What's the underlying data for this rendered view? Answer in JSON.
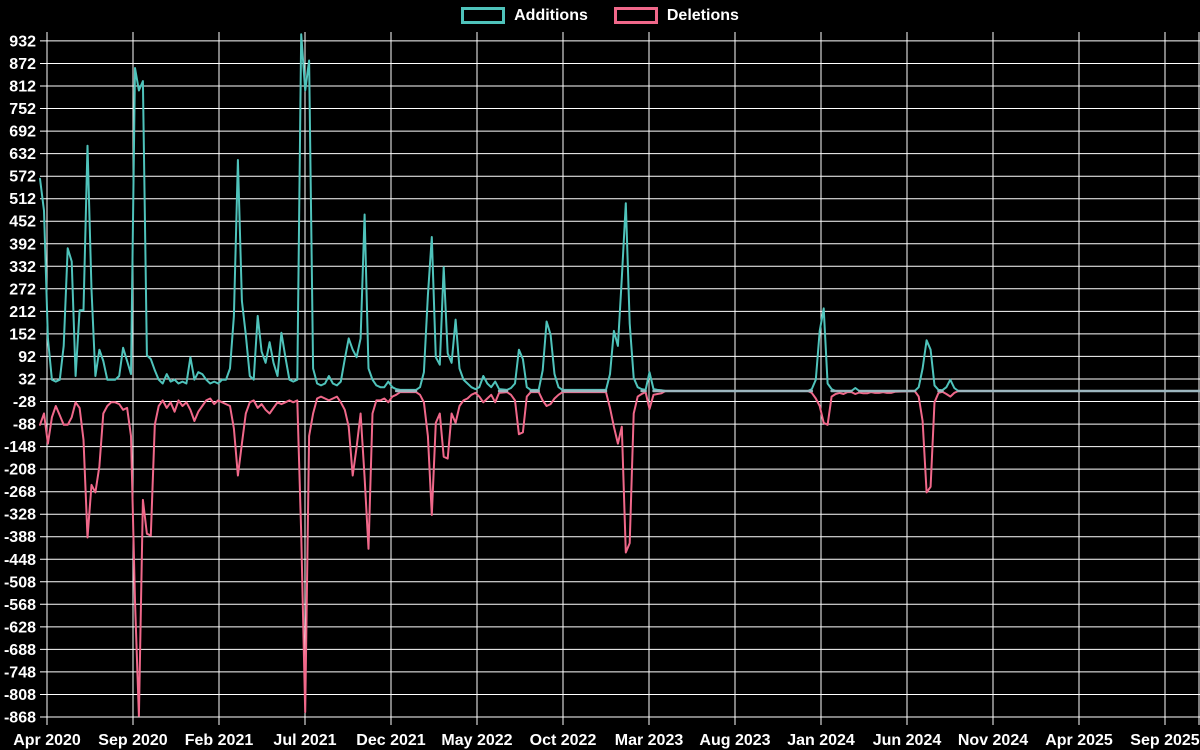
{
  "page": {
    "background": "#000000"
  },
  "legend": {
    "position": "top-center",
    "items": [
      {
        "label": "Additions",
        "color": "#4fc3bb"
      },
      {
        "label": "Deletions",
        "color": "#f0688a"
      }
    ]
  },
  "chart_data": {
    "type": "line",
    "title": "",
    "background": "#000000",
    "grid": true,
    "grid_color": "#ffffff",
    "axis_text_color": "#ffffff",
    "zero_line_color": "#9db7bf",
    "legend_position": "top-center",
    "x_axis": {
      "unit": "week",
      "tick_labels": [
        "Apr 2020",
        "Sep 2020",
        "Feb 2021",
        "Jul 2021",
        "Dec 2021",
        "May 2022",
        "Oct 2022",
        "Mar 2023",
        "Aug 2023",
        "Jan 2024",
        "Jun 2024",
        "Nov 2024",
        "Apr 2025",
        "Sep 2025"
      ]
    },
    "y_axis": {
      "ticks": [
        932,
        872,
        812,
        752,
        692,
        632,
        572,
        512,
        452,
        392,
        332,
        272,
        212,
        152,
        92,
        32,
        -28,
        -88,
        -148,
        -208,
        -268,
        -328,
        -388,
        -448,
        -508,
        -568,
        -628,
        -688,
        -748,
        -808,
        -868
      ],
      "min": -881,
      "max": 956
    },
    "series": [
      {
        "name": "Additions",
        "color": "#4fc3bb"
      },
      {
        "name": "Deletions",
        "color": "#f0688a"
      }
    ],
    "points_format": "[week_index, additions, deletions]",
    "points": [
      [
        0,
        565,
        -90
      ],
      [
        1,
        480,
        -60
      ],
      [
        2,
        140,
        -140
      ],
      [
        3,
        30,
        -70
      ],
      [
        4,
        25,
        -40
      ],
      [
        5,
        30,
        -65
      ],
      [
        6,
        120,
        -90
      ],
      [
        7,
        380,
        -90
      ],
      [
        8,
        345,
        -70
      ],
      [
        9,
        40,
        -30
      ],
      [
        10,
        215,
        -45
      ],
      [
        11,
        215,
        -130
      ],
      [
        12,
        653,
        -390
      ],
      [
        13,
        270,
        -250
      ],
      [
        14,
        40,
        -270
      ],
      [
        15,
        110,
        -200
      ],
      [
        16,
        80,
        -60
      ],
      [
        17,
        30,
        -40
      ],
      [
        18,
        30,
        -30
      ],
      [
        19,
        30,
        -30
      ],
      [
        20,
        40,
        -35
      ],
      [
        21,
        115,
        -50
      ],
      [
        22,
        80,
        -45
      ],
      [
        23,
        45,
        -120
      ],
      [
        24,
        860,
        -560
      ],
      [
        25,
        800,
        -865
      ],
      [
        26,
        825,
        -290
      ],
      [
        27,
        95,
        -380
      ],
      [
        28,
        85,
        -385
      ],
      [
        29,
        55,
        -90
      ],
      [
        30,
        30,
        -40
      ],
      [
        31,
        20,
        -25
      ],
      [
        32,
        45,
        -45
      ],
      [
        33,
        25,
        -30
      ],
      [
        34,
        30,
        -55
      ],
      [
        35,
        20,
        -25
      ],
      [
        36,
        25,
        -40
      ],
      [
        37,
        20,
        -30
      ],
      [
        38,
        90,
        -50
      ],
      [
        39,
        30,
        -80
      ],
      [
        40,
        50,
        -55
      ],
      [
        41,
        45,
        -40
      ],
      [
        42,
        30,
        -25
      ],
      [
        43,
        20,
        -20
      ],
      [
        44,
        25,
        -35
      ],
      [
        45,
        20,
        -25
      ],
      [
        46,
        30,
        -30
      ],
      [
        47,
        30,
        -35
      ],
      [
        48,
        60,
        -40
      ],
      [
        49,
        200,
        -100
      ],
      [
        50,
        615,
        -225
      ],
      [
        51,
        240,
        -140
      ],
      [
        52,
        150,
        -60
      ],
      [
        53,
        40,
        -30
      ],
      [
        54,
        30,
        -25
      ],
      [
        55,
        200,
        -45
      ],
      [
        56,
        105,
        -35
      ],
      [
        57,
        75,
        -50
      ],
      [
        58,
        130,
        -60
      ],
      [
        59,
        75,
        -45
      ],
      [
        60,
        40,
        -30
      ],
      [
        61,
        155,
        -35
      ],
      [
        62,
        90,
        -30
      ],
      [
        63,
        30,
        -25
      ],
      [
        64,
        25,
        -30
      ],
      [
        65,
        30,
        -25
      ],
      [
        66,
        950,
        -380
      ],
      [
        67,
        800,
        -855
      ],
      [
        68,
        880,
        -120
      ],
      [
        69,
        60,
        -60
      ],
      [
        70,
        20,
        -20
      ],
      [
        71,
        15,
        -15
      ],
      [
        72,
        20,
        -20
      ],
      [
        73,
        40,
        -25
      ],
      [
        74,
        20,
        -20
      ],
      [
        75,
        15,
        -15
      ],
      [
        76,
        25,
        -30
      ],
      [
        77,
        85,
        -50
      ],
      [
        78,
        140,
        -95
      ],
      [
        79,
        110,
        -225
      ],
      [
        80,
        90,
        -150
      ],
      [
        81,
        140,
        -60
      ],
      [
        82,
        470,
        -230
      ],
      [
        83,
        60,
        -420
      ],
      [
        84,
        30,
        -60
      ],
      [
        85,
        15,
        -25
      ],
      [
        86,
        10,
        -25
      ],
      [
        87,
        10,
        -20
      ],
      [
        88,
        25,
        -30
      ],
      [
        89,
        10,
        -15
      ],
      [
        90,
        5,
        -10
      ],
      [
        91,
        3,
        -3
      ],
      [
        95,
        3,
        -3
      ],
      [
        96,
        10,
        -10
      ],
      [
        97,
        50,
        -30
      ],
      [
        98,
        255,
        -120
      ],
      [
        99,
        410,
        -330
      ],
      [
        100,
        90,
        -85
      ],
      [
        101,
        70,
        -60
      ],
      [
        102,
        330,
        -175
      ],
      [
        103,
        100,
        -180
      ],
      [
        104,
        75,
        -60
      ],
      [
        105,
        190,
        -85
      ],
      [
        106,
        60,
        -40
      ],
      [
        107,
        30,
        -25
      ],
      [
        108,
        20,
        -20
      ],
      [
        109,
        10,
        -10
      ],
      [
        110,
        5,
        -5
      ],
      [
        111,
        10,
        -15
      ],
      [
        112,
        40,
        -30
      ],
      [
        113,
        20,
        -20
      ],
      [
        114,
        10,
        -10
      ],
      [
        115,
        25,
        -30
      ],
      [
        116,
        5,
        -5
      ],
      [
        118,
        3,
        -3
      ],
      [
        119,
        8,
        -10
      ],
      [
        120,
        20,
        -25
      ],
      [
        121,
        110,
        -115
      ],
      [
        122,
        85,
        -110
      ],
      [
        123,
        10,
        -15
      ],
      [
        124,
        3,
        -3
      ],
      [
        126,
        3,
        -3
      ],
      [
        127,
        55,
        -25
      ],
      [
        128,
        185,
        -40
      ],
      [
        129,
        150,
        -35
      ],
      [
        130,
        45,
        -20
      ],
      [
        131,
        10,
        -10
      ],
      [
        132,
        3,
        -3
      ],
      [
        143,
        3,
        -3
      ],
      [
        144,
        45,
        -45
      ],
      [
        145,
        160,
        -95
      ],
      [
        146,
        120,
        -140
      ],
      [
        147,
        300,
        -95
      ],
      [
        148,
        500,
        -430
      ],
      [
        149,
        180,
        -405
      ],
      [
        150,
        35,
        -60
      ],
      [
        151,
        10,
        -15
      ],
      [
        152,
        5,
        -8
      ],
      [
        153,
        3,
        -3
      ],
      [
        154,
        50,
        -48
      ],
      [
        155,
        5,
        -10
      ],
      [
        156,
        3,
        -8
      ],
      [
        157,
        2,
        -6
      ],
      [
        158,
        0,
        0
      ],
      [
        194,
        0,
        0
      ],
      [
        195,
        5,
        -5
      ],
      [
        196,
        30,
        -20
      ],
      [
        197,
        160,
        -40
      ],
      [
        198,
        220,
        -85
      ],
      [
        199,
        20,
        -90
      ],
      [
        200,
        5,
        -15
      ],
      [
        201,
        0,
        -8
      ],
      [
        202,
        0,
        -5
      ],
      [
        203,
        0,
        -8
      ],
      [
        204,
        0,
        -3
      ],
      [
        205,
        0,
        -3
      ],
      [
        206,
        8,
        -8
      ],
      [
        207,
        0,
        -4
      ],
      [
        208,
        0,
        -6
      ],
      [
        209,
        0,
        -6
      ],
      [
        210,
        0,
        -3
      ],
      [
        211,
        0,
        -5
      ],
      [
        212,
        0,
        -5
      ],
      [
        213,
        0,
        -3
      ],
      [
        214,
        0,
        -5
      ],
      [
        215,
        0,
        -5
      ],
      [
        216,
        0,
        -2
      ],
      [
        221,
        0,
        0
      ],
      [
        222,
        10,
        -15
      ],
      [
        223,
        60,
        -80
      ],
      [
        224,
        135,
        -270
      ],
      [
        225,
        110,
        -255
      ],
      [
        226,
        15,
        -30
      ],
      [
        227,
        3,
        -5
      ],
      [
        228,
        2,
        -2
      ],
      [
        229,
        10,
        -8
      ],
      [
        230,
        30,
        -15
      ],
      [
        231,
        8,
        -5
      ],
      [
        232,
        0,
        0
      ],
      [
        293,
        0,
        0
      ]
    ]
  }
}
